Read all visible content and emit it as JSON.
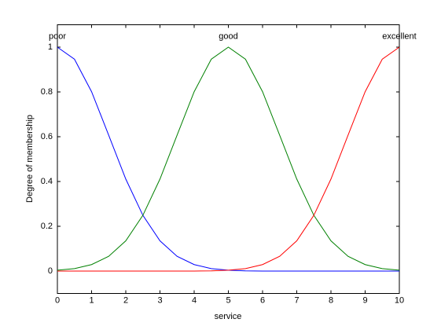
{
  "chart_data": {
    "type": "line",
    "xlabel": "service",
    "ylabel": "Degree of membership",
    "x": [
      0,
      0.5,
      1,
      1.5,
      2,
      2.5,
      3,
      3.5,
      4,
      4.5,
      5,
      5.5,
      6,
      6.5,
      7,
      7.5,
      8,
      8.5,
      9,
      9.5,
      10
    ],
    "series": [
      {
        "name": "poor",
        "color": "#0000ff",
        "label_x": 0,
        "values": [
          1,
          0.946,
          0.801,
          0.607,
          0.411,
          0.249,
          0.135,
          0.066,
          0.029,
          0.011,
          0.004,
          0.001,
          0,
          0,
          0,
          0,
          0,
          0,
          0,
          0,
          0
        ]
      },
      {
        "name": "good",
        "color": "#008000",
        "label_x": 5,
        "values": [
          0.004,
          0.011,
          0.029,
          0.066,
          0.135,
          0.249,
          0.411,
          0.607,
          0.801,
          0.946,
          1,
          0.946,
          0.801,
          0.607,
          0.411,
          0.249,
          0.135,
          0.066,
          0.029,
          0.011,
          0.004
        ]
      },
      {
        "name": "excellent",
        "color": "#ff0000",
        "label_x": 10,
        "values": [
          0,
          0,
          0,
          0,
          0,
          0,
          0,
          0,
          0,
          0.001,
          0.004,
          0.011,
          0.029,
          0.066,
          0.135,
          0.249,
          0.411,
          0.607,
          0.801,
          0.946,
          1
        ]
      }
    ],
    "xlim": [
      0,
      10
    ],
    "xticks": [
      0,
      1,
      2,
      3,
      4,
      5,
      6,
      7,
      8,
      9,
      10
    ],
    "ylim": [
      -0.1,
      1.1
    ],
    "yticks": [
      0,
      0.2,
      0.4,
      0.6,
      0.8,
      1
    ]
  }
}
